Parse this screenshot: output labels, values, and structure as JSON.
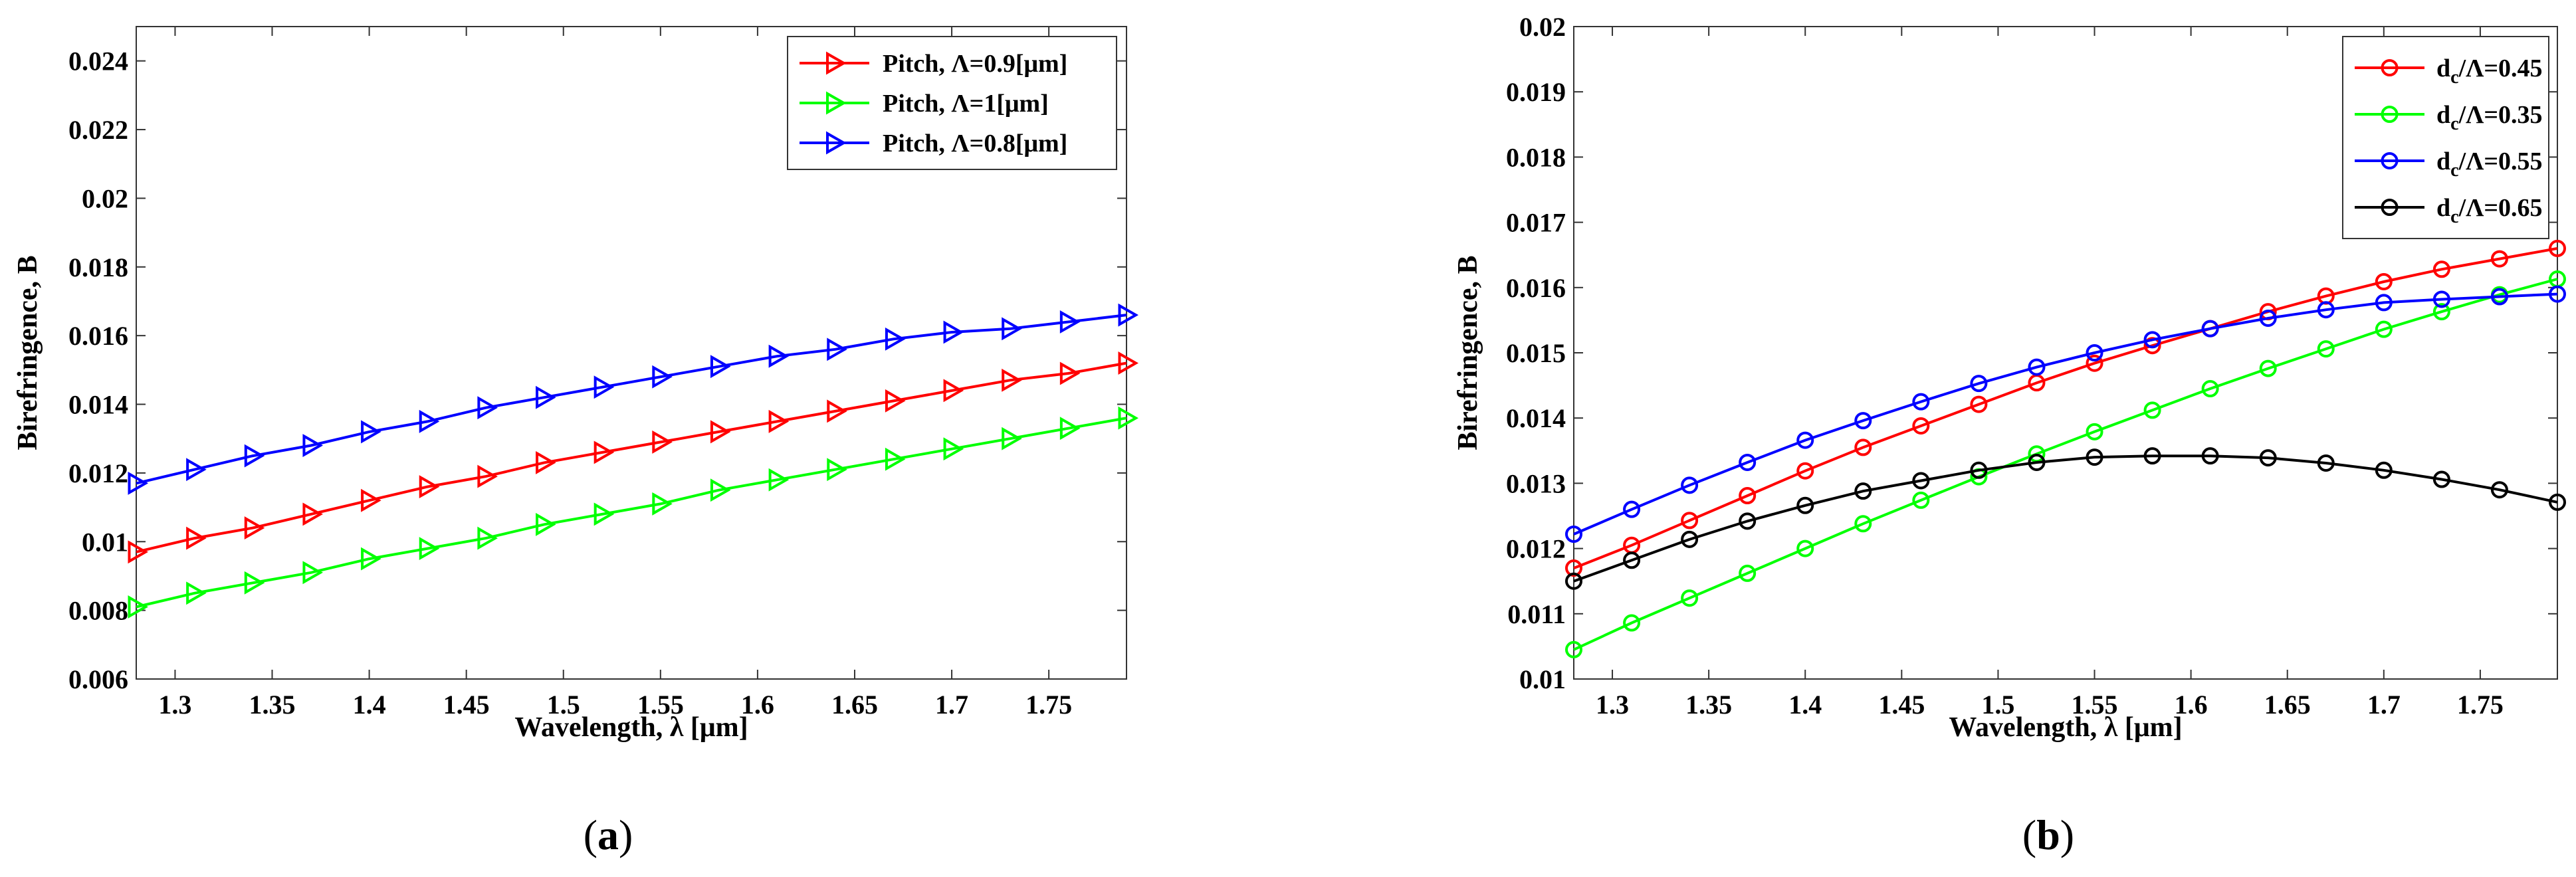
{
  "chart_data": [
    {
      "type": "line",
      "caption": "(a)",
      "xlabel": "Wavelength, λ [μm]",
      "ylabel": "Birefringence, B",
      "xlim": [
        1.28,
        1.79
      ],
      "ylim": [
        0.006,
        0.025
      ],
      "xticks": [
        "1.3",
        "1.35",
        "1.4",
        "1.45",
        "1.5",
        "1.55",
        "1.6",
        "1.65",
        "1.7",
        "1.75"
      ],
      "yticks": [
        "0.006",
        "0.008",
        "0.01",
        "0.012",
        "0.014",
        "0.016",
        "0.018",
        "0.02",
        "0.022",
        "0.024"
      ],
      "grid": false,
      "legend": "top-right",
      "marker": "triangle-right",
      "x": [
        1.28,
        1.31,
        1.34,
        1.37,
        1.4,
        1.43,
        1.46,
        1.49,
        1.52,
        1.55,
        1.58,
        1.61,
        1.64,
        1.67,
        1.7,
        1.73,
        1.76,
        1.79
      ],
      "series": [
        {
          "name": "Pitch, Λ=0.9[μm]",
          "color": "#ff0000",
          "values": [
            0.0097,
            0.0101,
            0.0104,
            0.0108,
            0.0112,
            0.0116,
            0.0119,
            0.0123,
            0.0126,
            0.0129,
            0.0132,
            0.0135,
            0.0138,
            0.0141,
            0.0144,
            0.0147,
            0.0149,
            0.0152
          ]
        },
        {
          "name": "Pitch, Λ=1[μm]",
          "color": "#00ff00",
          "values": [
            0.0081,
            0.0085,
            0.0088,
            0.0091,
            0.0095,
            0.0098,
            0.0101,
            0.0105,
            0.0108,
            0.0111,
            0.0115,
            0.0118,
            0.0121,
            0.0124,
            0.0127,
            0.013,
            0.0133,
            0.0136
          ]
        },
        {
          "name": "Pitch, Λ=0.8[μm]",
          "color": "#0000ff",
          "values": [
            0.0117,
            0.0121,
            0.0125,
            0.0128,
            0.0132,
            0.0135,
            0.0139,
            0.0142,
            0.0145,
            0.0148,
            0.0151,
            0.0154,
            0.0156,
            0.0159,
            0.0161,
            0.0162,
            0.0164,
            0.0166
          ]
        }
      ]
    },
    {
      "type": "line",
      "caption": "(b)",
      "xlabel": "Wavelength, λ [μm]",
      "ylabel": "Birefringence, B",
      "xlim": [
        1.28,
        1.79
      ],
      "ylim": [
        0.01,
        0.02
      ],
      "xticks": [
        "1.3",
        "1.35",
        "1.4",
        "1.45",
        "1.5",
        "1.55",
        "1.6",
        "1.65",
        "1.7",
        "1.75"
      ],
      "yticks": [
        "0.01",
        "0.011",
        "0.012",
        "0.013",
        "0.014",
        "0.015",
        "0.016",
        "0.017",
        "0.018",
        "0.019",
        "0.02"
      ],
      "grid": false,
      "legend": "top-right",
      "marker": "circle",
      "x": [
        1.28,
        1.31,
        1.34,
        1.37,
        1.4,
        1.43,
        1.46,
        1.49,
        1.52,
        1.55,
        1.58,
        1.61,
        1.64,
        1.67,
        1.7,
        1.73,
        1.76,
        1.79
      ],
      "series": [
        {
          "name": "d",
          "sub": "c",
          "tail": "/Λ=0.45",
          "color": "#ff0000",
          "values": [
            0.0117,
            0.01205,
            0.01243,
            0.01281,
            0.01319,
            0.01355,
            0.01388,
            0.01421,
            0.01454,
            0.01484,
            0.01511,
            0.01537,
            0.01563,
            0.01587,
            0.01609,
            0.01628,
            0.01644,
            0.0166
          ]
        },
        {
          "name": "d",
          "sub": "c",
          "tail": "/Λ=0.35",
          "color": "#00ff00",
          "values": [
            0.01045,
            0.01086,
            0.01124,
            0.01162,
            0.012,
            0.01238,
            0.01274,
            0.0131,
            0.01345,
            0.01379,
            0.01412,
            0.01445,
            0.01476,
            0.01506,
            0.01536,
            0.01563,
            0.01589,
            0.01613
          ]
        },
        {
          "name": "d",
          "sub": "c",
          "tail": "/Λ=0.55",
          "color": "#0000ff",
          "values": [
            0.01222,
            0.0126,
            0.01297,
            0.01332,
            0.01366,
            0.01396,
            0.01425,
            0.01453,
            0.01478,
            0.015,
            0.0152,
            0.01537,
            0.01553,
            0.01566,
            0.01577,
            0.01582,
            0.01586,
            0.0159
          ]
        },
        {
          "name": "d",
          "sub": "c",
          "tail": "/Λ=0.65",
          "color": "#000000",
          "values": [
            0.0115,
            0.01182,
            0.01214,
            0.01242,
            0.01266,
            0.01288,
            0.01304,
            0.0132,
            0.01332,
            0.0134,
            0.01342,
            0.01342,
            0.01339,
            0.01331,
            0.0132,
            0.01306,
            0.0129,
            0.01271
          ]
        }
      ]
    }
  ]
}
